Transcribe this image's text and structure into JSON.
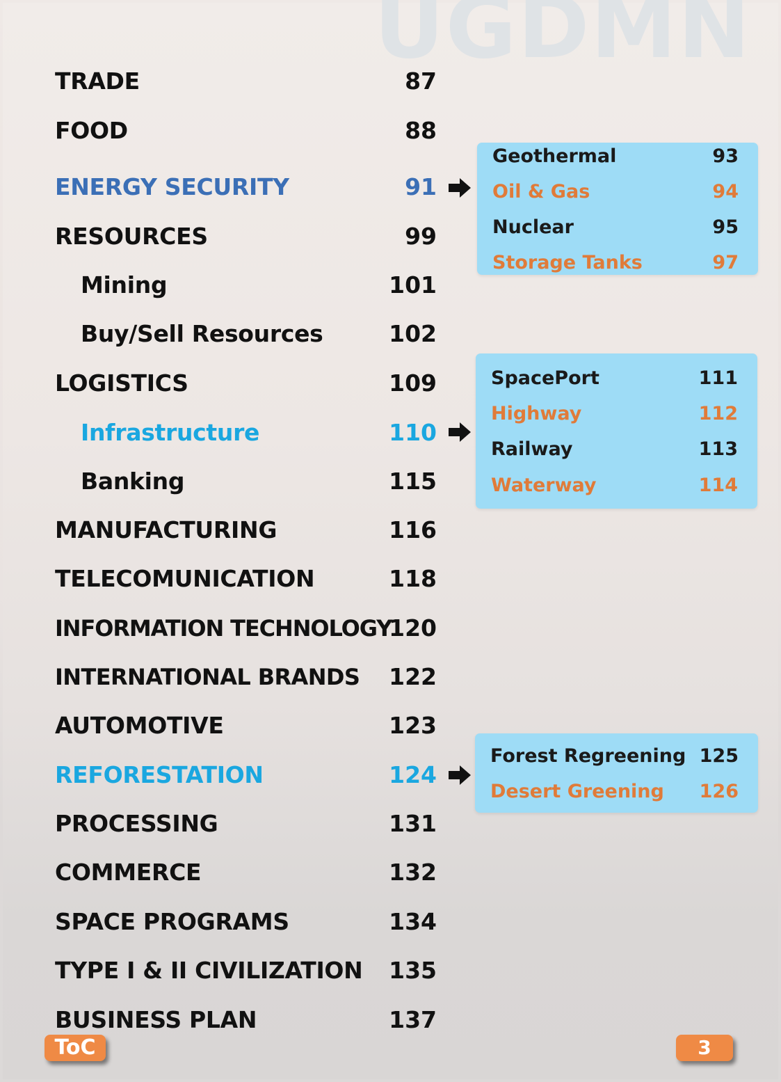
{
  "watermark": "UGDMN",
  "colors": {
    "energy_blue": "#3b6fb6",
    "cyan_accent": "#1aa7e0",
    "orange": "#e07b39",
    "box_bg": "#9edcf6"
  },
  "toc": [
    {
      "label": "TRADE",
      "page": "87"
    },
    {
      "label": "FOOD",
      "page": "88"
    },
    {
      "label": "ENERGY SECURITY",
      "page": "91"
    },
    {
      "label": "RESOURCES",
      "page": "99"
    },
    {
      "label": "Mining",
      "page": "101"
    },
    {
      "label": "Buy/Sell Resources",
      "page": "102"
    },
    {
      "label": "LOGISTICS",
      "page": "109"
    },
    {
      "label": "Infrastructure",
      "page": "110"
    },
    {
      "label": "Banking",
      "page": "115"
    },
    {
      "label": "MANUFACTURING",
      "page": "116"
    },
    {
      "label": "TELECOMUNICATION",
      "page": "118"
    },
    {
      "label": "INFORMATION TECHNOLOGY",
      "page": "120"
    },
    {
      "label": "INTERNATIONAL BRANDS",
      "page": "122"
    },
    {
      "label": "AUTOMOTIVE",
      "page": "123"
    },
    {
      "label": "REFORESTATION",
      "page": "124"
    },
    {
      "label": "PROCESSING",
      "page": "131"
    },
    {
      "label": "COMMERCE",
      "page": "132"
    },
    {
      "label": "SPACE PROGRAMS",
      "page": "134"
    },
    {
      "label": "TYPE I & II CIVILIZATION",
      "page": "135"
    },
    {
      "label": "BUSINESS PLAN",
      "page": "137"
    }
  ],
  "energy_sub": [
    {
      "label": "Geothermal",
      "page": "93"
    },
    {
      "label": "Oil & Gas",
      "page": "94"
    },
    {
      "label": "Nuclear",
      "page": "95"
    },
    {
      "label": "Storage Tanks",
      "page": "97"
    }
  ],
  "infra_sub": [
    {
      "label": "SpacePort",
      "page": "111"
    },
    {
      "label": "Highway",
      "page": "112"
    },
    {
      "label": "Railway",
      "page": "113"
    },
    {
      "label": "Waterway",
      "page": "114"
    }
  ],
  "reforest_sub": [
    {
      "label": "Forest Regreening",
      "page": "125"
    },
    {
      "label": "Desert Greening",
      "page": "126"
    }
  ],
  "footer": {
    "toc_tab": "ToC",
    "page_number": "3"
  }
}
